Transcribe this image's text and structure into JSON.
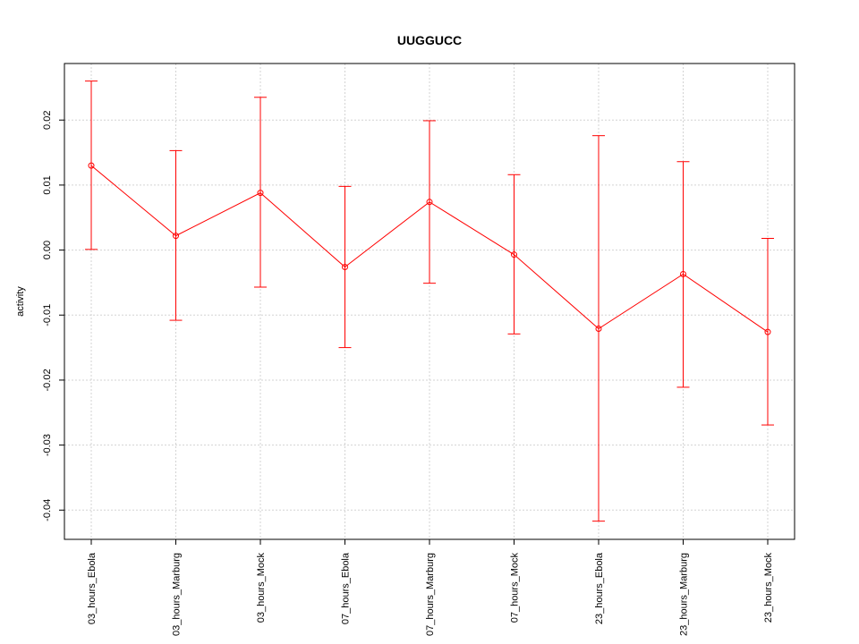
{
  "chart_data": {
    "type": "line",
    "title": "UUGGUCC",
    "xlabel": "",
    "ylabel": "activity",
    "categories": [
      "03_hours_Ebola",
      "03_hours_Marburg",
      "03_hours_Mock",
      "07_hours_Ebola",
      "07_hours_Marburg",
      "07_hours_Mock",
      "23_hours_Ebola",
      "23_hours_Marburg",
      "23_hours_Mock"
    ],
    "series": [
      {
        "values": [
          0.013,
          0.0022,
          0.0088,
          -0.0026,
          0.0074,
          -0.0007,
          -0.0121,
          -0.0037,
          -0.0126
        ],
        "upper": [
          0.026,
          0.0153,
          0.0235,
          0.0098,
          0.0199,
          0.0116,
          0.0176,
          0.0136,
          0.0018
        ],
        "lower": [
          0.0001,
          -0.0108,
          -0.0057,
          -0.015,
          -0.0051,
          -0.0129,
          -0.0417,
          -0.0211,
          -0.0269
        ]
      }
    ],
    "yticks": [
      "0.02",
      "0.01",
      "0.00",
      "-0.01",
      "-0.02",
      "-0.03",
      "-0.04"
    ],
    "ylim": [
      -0.0445,
      0.0287
    ],
    "grid": true,
    "colors": {
      "series": "#ff0000",
      "grid": "#d3d3d3",
      "axis": "#000000"
    }
  }
}
